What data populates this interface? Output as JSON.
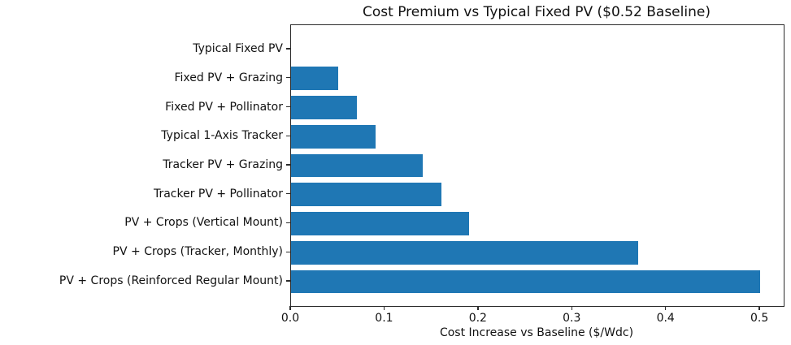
{
  "chart_data": {
    "type": "bar",
    "orientation": "horizontal",
    "title": "Cost Premium vs Typical Fixed PV ($0.52 Baseline)",
    "xlabel": "Cost Increase vs Baseline ($/Wdc)",
    "ylabel": "",
    "categories": [
      "Typical Fixed PV",
      "Fixed PV + Grazing",
      "Fixed PV + Pollinator",
      "Typical 1-Axis Tracker",
      "Tracker PV + Grazing",
      "Tracker PV + Pollinator",
      "PV + Crops (Vertical Mount)",
      "PV + Crops (Tracker, Monthly)",
      "PV + Crops (Reinforced Regular Mount)"
    ],
    "values": [
      0.0,
      0.05,
      0.07,
      0.09,
      0.14,
      0.16,
      0.19,
      0.37,
      0.5
    ],
    "xlim": [
      0,
      0.525
    ],
    "xticks": [
      0.0,
      0.1,
      0.2,
      0.3,
      0.4,
      0.5
    ],
    "xtick_decimals": 1,
    "grid": "off",
    "legend": "none",
    "bar_color": "#1f77b4",
    "spine_color": "#2b2b2b"
  }
}
